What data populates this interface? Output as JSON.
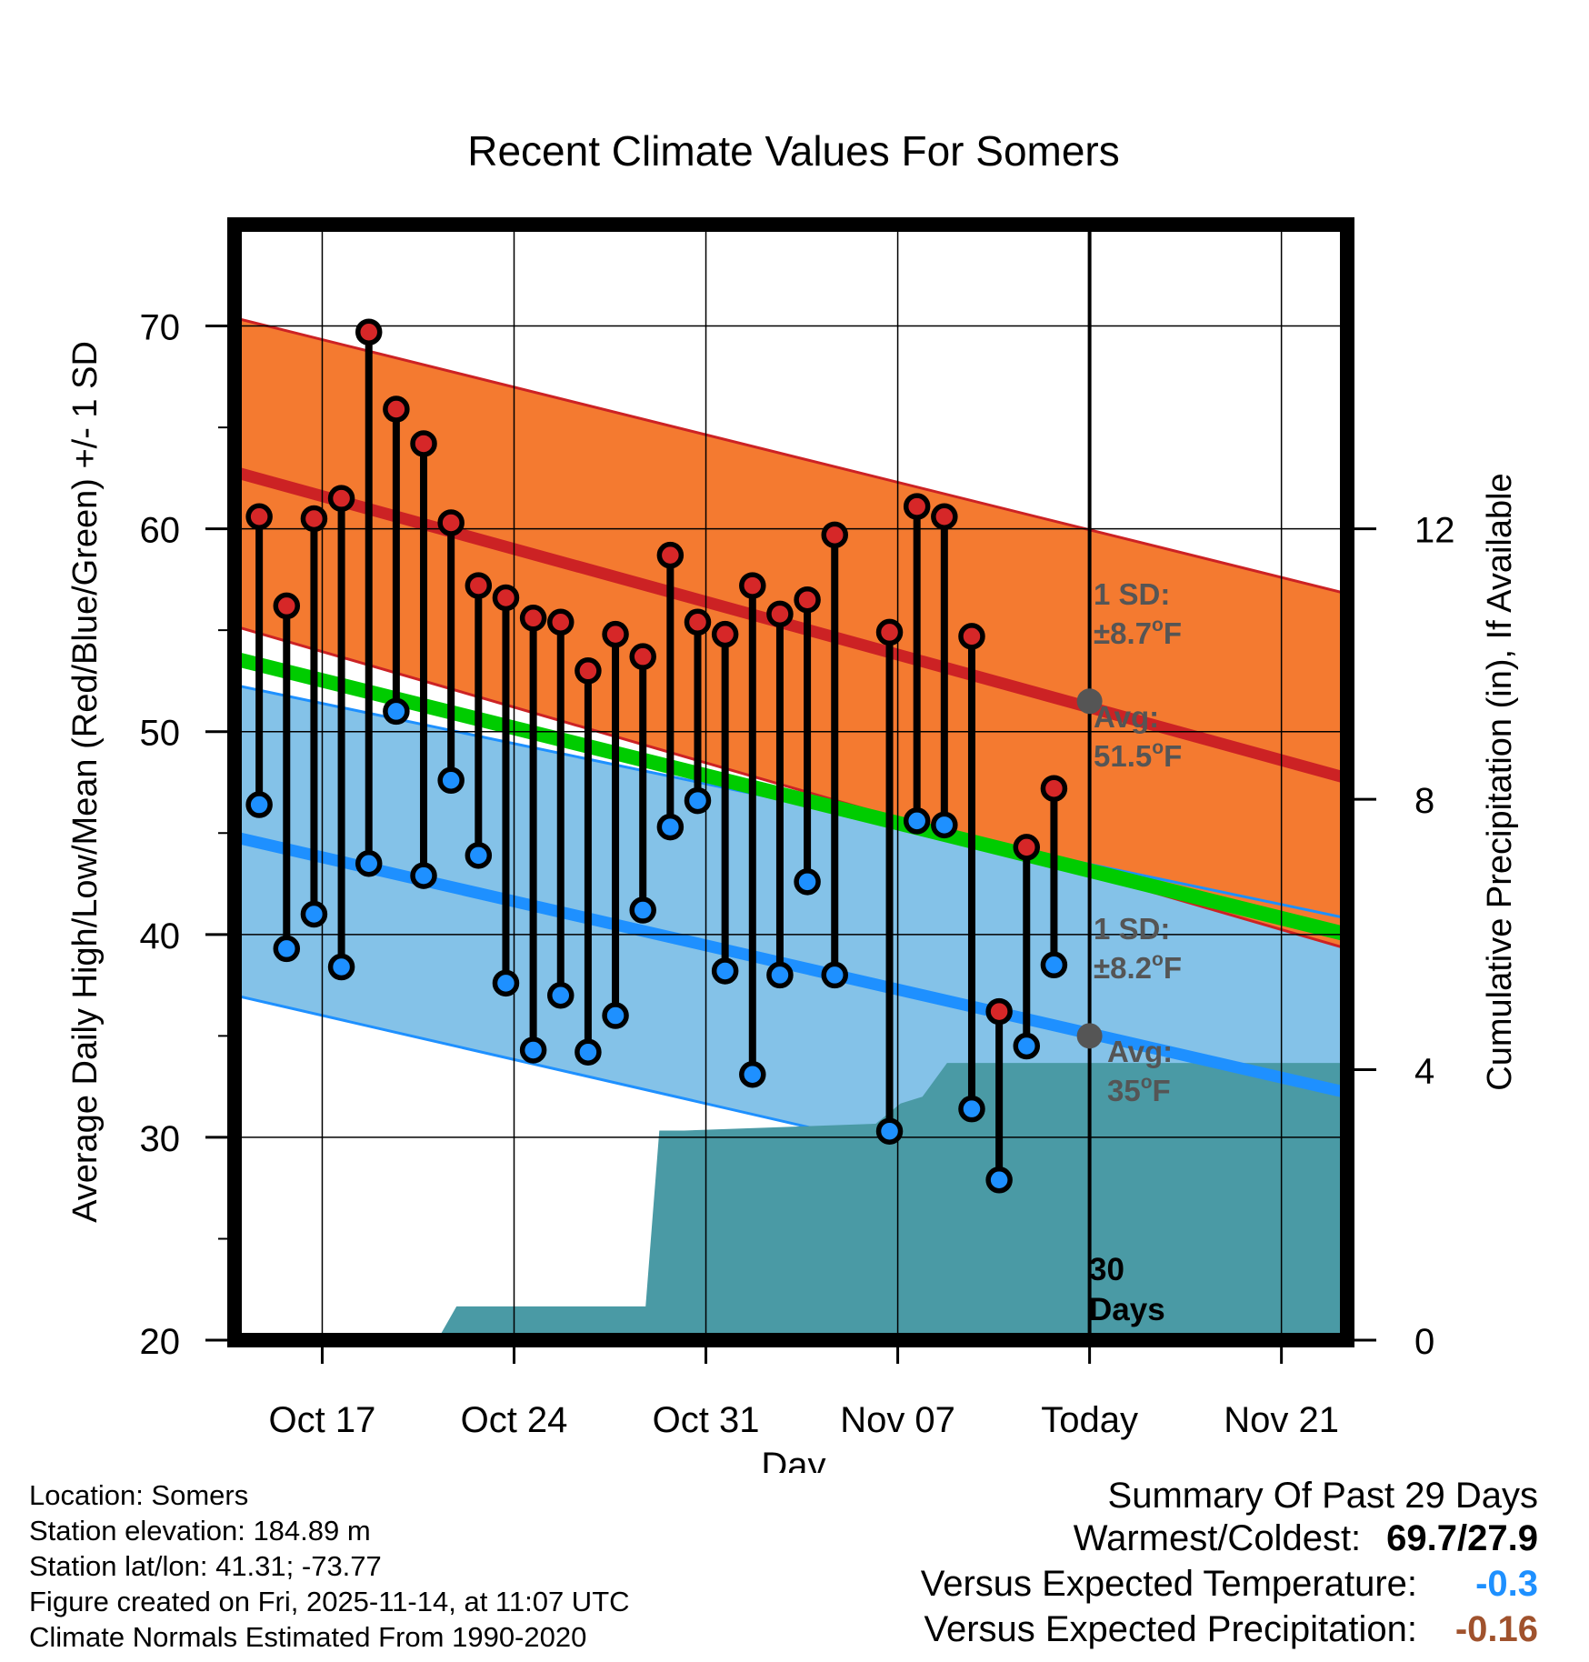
{
  "chart_data": {
    "type": "line",
    "title": "Recent Climate Values For Somers",
    "xlabel": "Day",
    "ylabel_left": "Average Daily High/Low/Mean (Red/Blue/Green) +/- 1 SD",
    "ylabel_right": "Cumulative Precipitation (in), If Available",
    "ylim": [
      20,
      75
    ],
    "yticks": [
      20,
      30,
      40,
      50,
      60,
      70
    ],
    "y2lim": [
      0,
      16.5
    ],
    "y2ticks": [
      0,
      4,
      8,
      12
    ],
    "xlim": [
      -0.2,
      40.4
    ],
    "xticks": [
      {
        "x": 3,
        "label": "Oct 17"
      },
      {
        "x": 10,
        "label": "Oct 24"
      },
      {
        "x": 17,
        "label": "Oct 31"
      },
      {
        "x": 24,
        "label": "Nov 07"
      },
      {
        "x": 31,
        "label": "Today"
      },
      {
        "x": 38,
        "label": "Nov 21"
      }
    ],
    "today_x": 31,
    "normals": {
      "high_avg": {
        "start": 62.8,
        "end": 47.7
      },
      "high_sd_upper": {
        "start": 70.4,
        "end": 56.8
      },
      "high_sd_lower": {
        "start": 55.2,
        "end": 39.3
      },
      "low_avg": {
        "start": 44.8,
        "end": 32.2
      },
      "low_sd_upper": {
        "start": 52.3,
        "end": 40.8
      },
      "low_sd_lower": {
        "start": 37.0,
        "end": 24.4
      },
      "mean_avg": {
        "start": 53.6,
        "end": 40.0
      }
    },
    "series": [
      {
        "name": "Daily High",
        "x": [
          0.7,
          1.7,
          2.7,
          3.7,
          4.7,
          5.7,
          6.7,
          7.7,
          8.7,
          9.7,
          10.7,
          11.7,
          12.7,
          13.7,
          14.7,
          15.7,
          16.7,
          17.7,
          18.7,
          19.7,
          20.7,
          21.7,
          23.7,
          24.7,
          25.7,
          26.7,
          27.7,
          28.7,
          29.7
        ],
        "values": [
          60.6,
          56.2,
          60.5,
          61.5,
          69.7,
          65.9,
          64.2,
          60.3,
          57.2,
          56.6,
          55.6,
          55.4,
          53.0,
          54.8,
          53.7,
          58.7,
          55.4,
          54.8,
          57.2,
          55.8,
          56.5,
          59.7,
          54.9,
          61.1,
          60.6,
          54.7,
          36.2,
          44.3,
          47.2
        ]
      },
      {
        "name": "Daily Low",
        "x": [
          0.7,
          1.7,
          2.7,
          3.7,
          4.7,
          5.7,
          6.7,
          7.7,
          8.7,
          9.7,
          10.7,
          11.7,
          12.7,
          13.7,
          14.7,
          15.7,
          16.7,
          17.7,
          18.7,
          19.7,
          20.7,
          21.7,
          23.7,
          24.7,
          25.7,
          26.7,
          27.7,
          28.7,
          29.7
        ],
        "values": [
          46.4,
          39.3,
          41.0,
          38.4,
          43.5,
          51.0,
          42.9,
          47.6,
          43.9,
          37.6,
          34.3,
          37.0,
          34.2,
          36.0,
          41.2,
          45.3,
          46.6,
          38.2,
          33.1,
          38.0,
          42.6,
          38.0,
          30.3,
          45.6,
          45.4,
          31.4,
          27.9,
          34.5,
          38.5
        ]
      },
      {
        "name": "Cumulative Precipitation",
        "x": [
          7.2,
          7.9,
          14.8,
          15.3,
          16.2,
          23.2,
          24.1,
          24.9,
          25.8,
          26.6,
          40.4
        ],
        "values": [
          0.0,
          0.5,
          0.5,
          3.1,
          3.1,
          3.2,
          3.5,
          3.6,
          4.1,
          4.1,
          4.1
        ]
      }
    ],
    "annotations": {
      "high_sd_line1": "1 SD:",
      "high_sd_line2": "±8.7",
      "high_avg_line1": "Avg:",
      "high_avg_line2": "51.5",
      "low_sd_line1": "1 SD:",
      "low_sd_line2": "±8.2",
      "low_avg_line1": "Avg:",
      "low_avg_line2": "35",
      "degree_mark": "o",
      "unit": "F",
      "days_line1": "30",
      "days_line2": "Days"
    },
    "colors": {
      "high_band": "#f47a30",
      "high_line": "#cc2224",
      "low_band": "#84c2e8",
      "low_line": "#1e90ff",
      "mean_line": "#00cc00",
      "precip": "#4a9aa5",
      "high_dot": "#d62728",
      "low_dot": "#1e90ff",
      "annotation": "#555555",
      "anchor_dot": "#555555"
    }
  },
  "footer": {
    "location": "Location: Somers",
    "elevation": "Station elevation: 184.89 m",
    "latlon": "Station lat/lon: 41.31; -73.77",
    "created": "Figure created on Fri, 2025-11-14, at 11:07 UTC",
    "normals": "Climate Normals Estimated From 1990-2020"
  },
  "summary": {
    "heading": "Summary Of Past 29 Days",
    "warmest_label": "Warmest/Coldest:",
    "warmest_value": "69.7/27.9",
    "temp_label": "Versus Expected Temperature:",
    "temp_value": "-0.3",
    "temp_color": "#1e90ff",
    "precip_label": "Versus Expected Precipitation:",
    "precip_value": "-0.16",
    "precip_color": "#a0522d"
  }
}
